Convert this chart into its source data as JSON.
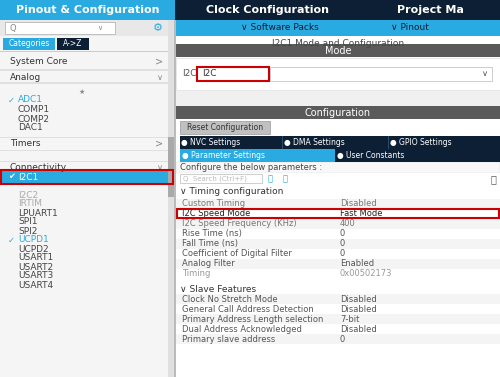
{
  "title_tab1": "Pinout & Configuration",
  "title_tab2": "Clock Configuration",
  "title_tab3": "Project Ma",
  "sub_tab1": "∨ Software Packs",
  "sub_tab2": "∨ Pinout",
  "panel_title": "I2C1 Mode and Configuration",
  "mode_label": "Mode",
  "config_label": "Configuration",
  "i2c_label": "I2C",
  "i2c_value": "I2C",
  "reset_btn": "Reset Configuration",
  "tab_nvc": "● NVC Settings",
  "tab_dma": "● DMA Settings",
  "tab_gpio": "● GPIO Settings",
  "tab_param": "● Parameter Settings",
  "tab_user": "● User Constants",
  "configure_text": "Configure the below parameters :",
  "search_placeholder": "Search (Ctrl+F)",
  "timing_section": "∨ Timing configuration",
  "custom_timing": "Custom Timing",
  "custom_timing_val": "Disabled",
  "i2c_speed_mode": "I2C Speed Mode",
  "i2c_speed_val": "Fast Mode",
  "i2c_speed_freq": "I2C Speed Frequency (KHz)",
  "i2c_speed_freq_val": "400",
  "rise_time": "Rise Time (ns)",
  "rise_time_val": "0",
  "fall_time": "Fall Time (ns)",
  "fall_time_val": "0",
  "coeff_filter": "Coefficient of Digital Filter",
  "coeff_filter_val": "0",
  "analog_filter": "Analog Filter",
  "analog_filter_val": "Enabled",
  "timing_row": "Timing",
  "timing_val": "0x00502173",
  "slave_section": "∨ Slave Features",
  "clock_stretch": "Clock No Stretch Mode",
  "clock_stretch_val": "Disabled",
  "general_call": "General Call Address Detection",
  "general_call_val": "Disabled",
  "primary_addr_len": "Primary Address Length selection",
  "primary_addr_len_val": "7-bit",
  "dual_addr": "Dual Address Acknowledged",
  "dual_addr_val": "Disabled",
  "primary_slave": "Primary slave address",
  "primary_slave_val": "0",
  "header_left_bg": "#29aae1",
  "header_mid_bg": "#0d1f35",
  "header_right_bg": "#0d1f35",
  "sub_bar_bg": "#29aae1",
  "sub_bar_text": "#0d1f35",
  "left_panel_bg": "#f5f5f5",
  "left_panel_separator": "#dddddd",
  "search_bar_bg": "#f5f5f5",
  "search_box_bg": "#ffffff",
  "categories_btn_bg": "#29aae1",
  "az_btn_bg": "#0d1f35",
  "az_btn_text": "#ffffff",
  "section_header_bg": "#5a5a5a",
  "mode_area_bg": "#ffffff",
  "right_panel_bg": "#ffffff",
  "config_area_bg": "#f5f5f5",
  "reset_btn_bg": "#b0b0b0",
  "tab_row1_bg": "#0d1f35",
  "tab_row2_left_bg": "#29aae1",
  "tab_row2_right_bg": "#0d1f35",
  "param_row_alt": "#f0f0f0",
  "param_row_norm": "#ffffff",
  "selected_item_bg": "#29aae1",
  "selected_item_text": "#ffffff",
  "check_color": "#29aae1",
  "section_label_color": "#555555",
  "sub_item_color": "#444444",
  "disabled_item_color": "#aaaaaa",
  "ucpd_color": "#29aae1",
  "red_box_color": "#cc0000",
  "timing_gray": "#999999",
  "right_white_bg": "#ffffff",
  "border_color": "#cccccc"
}
